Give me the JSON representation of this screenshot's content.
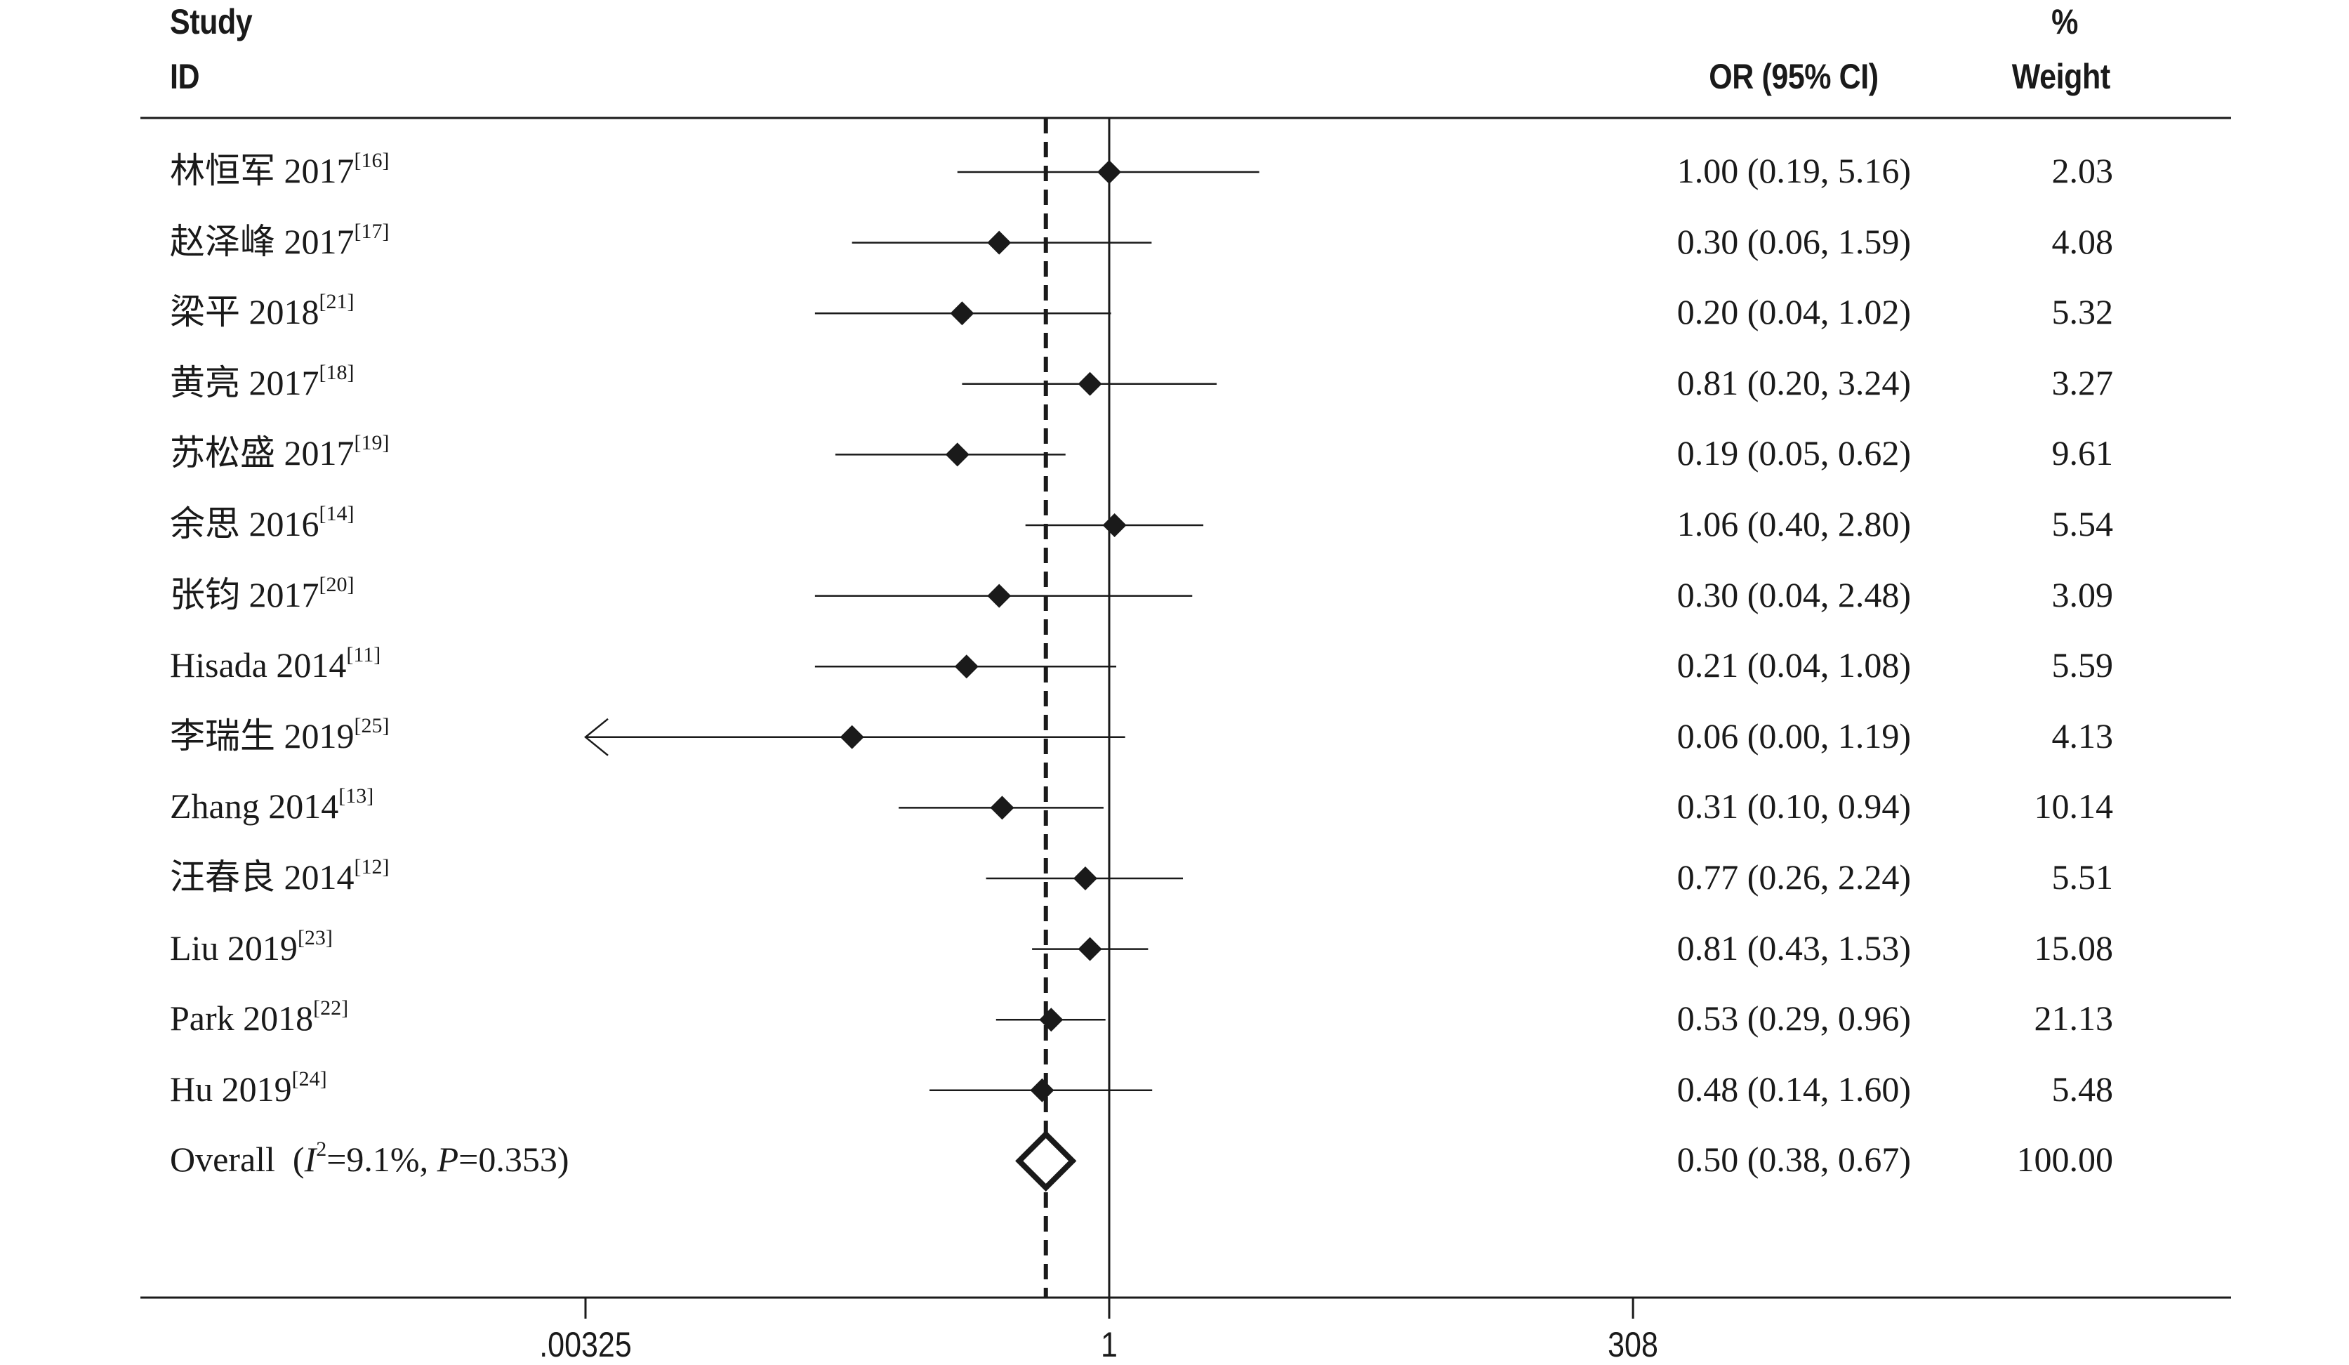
{
  "header": {
    "study_line1": "Study",
    "study_line2": "ID",
    "or_label": "OR (95% CI)",
    "weight_line1": "%",
    "weight_line2": "Weight"
  },
  "overall": {
    "label_prefix": "Overall  (",
    "i2_symbol": "I",
    "i2_sup": "2",
    "i2_value": "=9.1%, ",
    "p_symbol": "P",
    "p_value": "=0.353)",
    "ci_text": "0.50 (0.38, 0.67)",
    "weight": "100.00"
  },
  "chart_data": {
    "type": "forest",
    "scale": "log",
    "xlim": [
      0.00325,
      308
    ],
    "x_ticks": [
      {
        "value": 0.00325,
        "label": ".00325"
      },
      {
        "value": 1,
        "label": "1"
      },
      {
        "value": 308,
        "label": "308"
      }
    ],
    "null_line": 1,
    "pooled_line": 0.5,
    "columns": [
      "Study ID",
      "OR (95% CI)",
      "% Weight"
    ],
    "studies": [
      {
        "name": "林恒军 2017",
        "ref": "[16]",
        "or": 1.0,
        "lo": 0.19,
        "hi": 5.16,
        "ci_text": "1.00 (0.19, 5.16)",
        "weight": "2.03"
      },
      {
        "name": "赵泽峰 2017",
        "ref": "[17]",
        "or": 0.3,
        "lo": 0.06,
        "hi": 1.59,
        "ci_text": "0.30 (0.06, 1.59)",
        "weight": "4.08"
      },
      {
        "name": "梁平 2018",
        "ref": "[21]",
        "or": 0.2,
        "lo": 0.04,
        "hi": 1.02,
        "ci_text": "0.20 (0.04, 1.02)",
        "weight": "5.32"
      },
      {
        "name": "黄亮 2017",
        "ref": "[18]",
        "or": 0.81,
        "lo": 0.2,
        "hi": 3.24,
        "ci_text": "0.81 (0.20, 3.24)",
        "weight": "3.27"
      },
      {
        "name": "苏松盛 2017",
        "ref": "[19]",
        "or": 0.19,
        "lo": 0.05,
        "hi": 0.62,
        "ci_text": "0.19 (0.05, 0.62)",
        "weight": "9.61"
      },
      {
        "name": "余思 2016",
        "ref": "[14]",
        "or": 1.06,
        "lo": 0.4,
        "hi": 2.8,
        "ci_text": "1.06 (0.40, 2.80)",
        "weight": "5.54"
      },
      {
        "name": "张钧 2017",
        "ref": "[20]",
        "or": 0.3,
        "lo": 0.04,
        "hi": 2.48,
        "ci_text": "0.30 (0.04, 2.48)",
        "weight": "3.09"
      },
      {
        "name": "Hisada 2014",
        "ref": "[11]",
        "or": 0.21,
        "lo": 0.04,
        "hi": 1.08,
        "ci_text": "0.21 (0.04, 1.08)",
        "weight": "5.59"
      },
      {
        "name": "李瑞生 2019",
        "ref": "[25]",
        "or": 0.06,
        "lo": 0.0,
        "hi": 1.19,
        "ci_text": "0.06 (0.00, 1.19)",
        "weight": "4.13",
        "lower_truncated": true
      },
      {
        "name": "Zhang 2014",
        "ref": "[13]",
        "or": 0.31,
        "lo": 0.1,
        "hi": 0.94,
        "ci_text": "0.31 (0.10, 0.94)",
        "weight": "10.14"
      },
      {
        "name": "汪春良 2014",
        "ref": "[12]",
        "or": 0.77,
        "lo": 0.26,
        "hi": 2.24,
        "ci_text": "0.77 (0.26, 2.24)",
        "weight": "5.51"
      },
      {
        "name": "Liu 2019",
        "ref": "[23]",
        "or": 0.81,
        "lo": 0.43,
        "hi": 1.53,
        "ci_text": "0.81 (0.43, 1.53)",
        "weight": "15.08"
      },
      {
        "name": "Park 2018",
        "ref": "[22]",
        "or": 0.53,
        "lo": 0.29,
        "hi": 0.96,
        "ci_text": "0.53 (0.29, 0.96)",
        "weight": "21.13"
      },
      {
        "name": "Hu 2019",
        "ref": "[24]",
        "or": 0.48,
        "lo": 0.14,
        "hi": 1.6,
        "ci_text": "0.48 (0.14, 1.60)",
        "weight": "5.48"
      }
    ],
    "overall": {
      "or": 0.5,
      "lo": 0.38,
      "hi": 0.67
    }
  }
}
